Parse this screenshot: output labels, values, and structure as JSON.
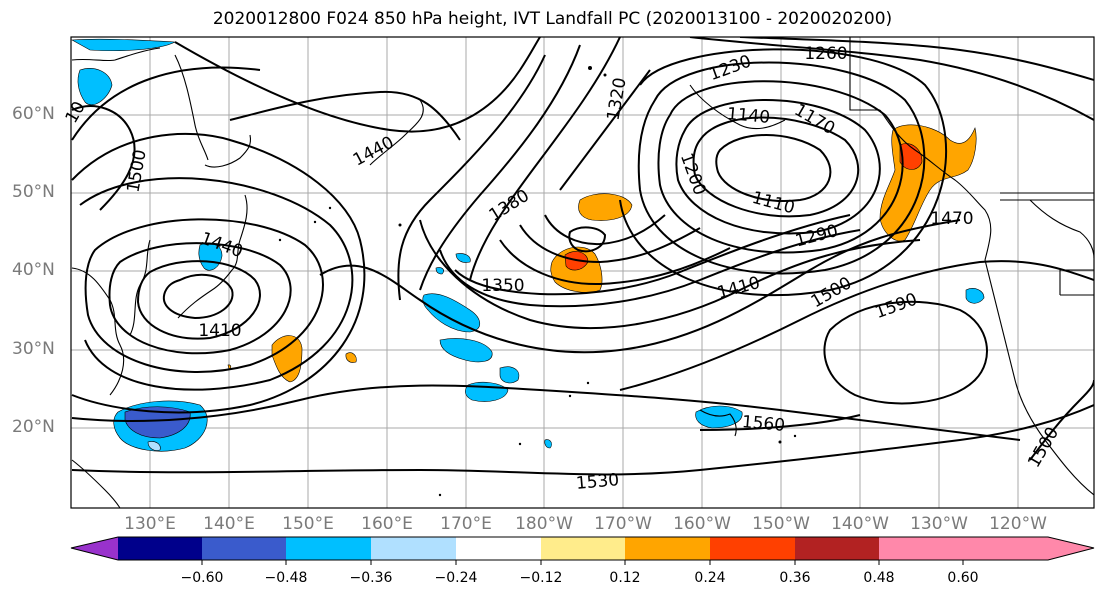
{
  "title": "2020012800 F024 850 hPa height, IVT Landfall PC (2020013100 - 2020020200)",
  "lat_labels": [
    "60°N",
    "50°N",
    "40°N",
    "30°N",
    "20°N"
  ],
  "lon_labels": [
    "130°E",
    "140°E",
    "150°E",
    "160°E",
    "170°E",
    "180°W",
    "170°W",
    "160°W",
    "150°W",
    "140°W",
    "130°W",
    "120°W"
  ],
  "contour_labels": [
    "1260",
    "1230",
    "1320",
    "1140",
    "1170",
    "1200",
    "1110",
    "1440",
    "1500",
    "1380",
    "1290",
    "1470",
    "1440",
    "1350",
    "1410",
    "1500",
    "1590",
    "1410",
    "1560",
    "1530",
    "1500",
    "10"
  ],
  "colorbar": {
    "colors": [
      "#9932cc",
      "#00008b",
      "#3a5bcc",
      "#00bfff",
      "#b0e0ff",
      "#ffffff",
      "#ffec8b",
      "#ffa500",
      "#ff4000",
      "#b22222",
      "#ff88aa"
    ],
    "tick_labels": [
      "−0.60",
      "−0.48",
      "−0.36",
      "−0.24",
      "−0.12",
      "0.12",
      "0.24",
      "0.36",
      "0.48",
      "0.60"
    ]
  }
}
